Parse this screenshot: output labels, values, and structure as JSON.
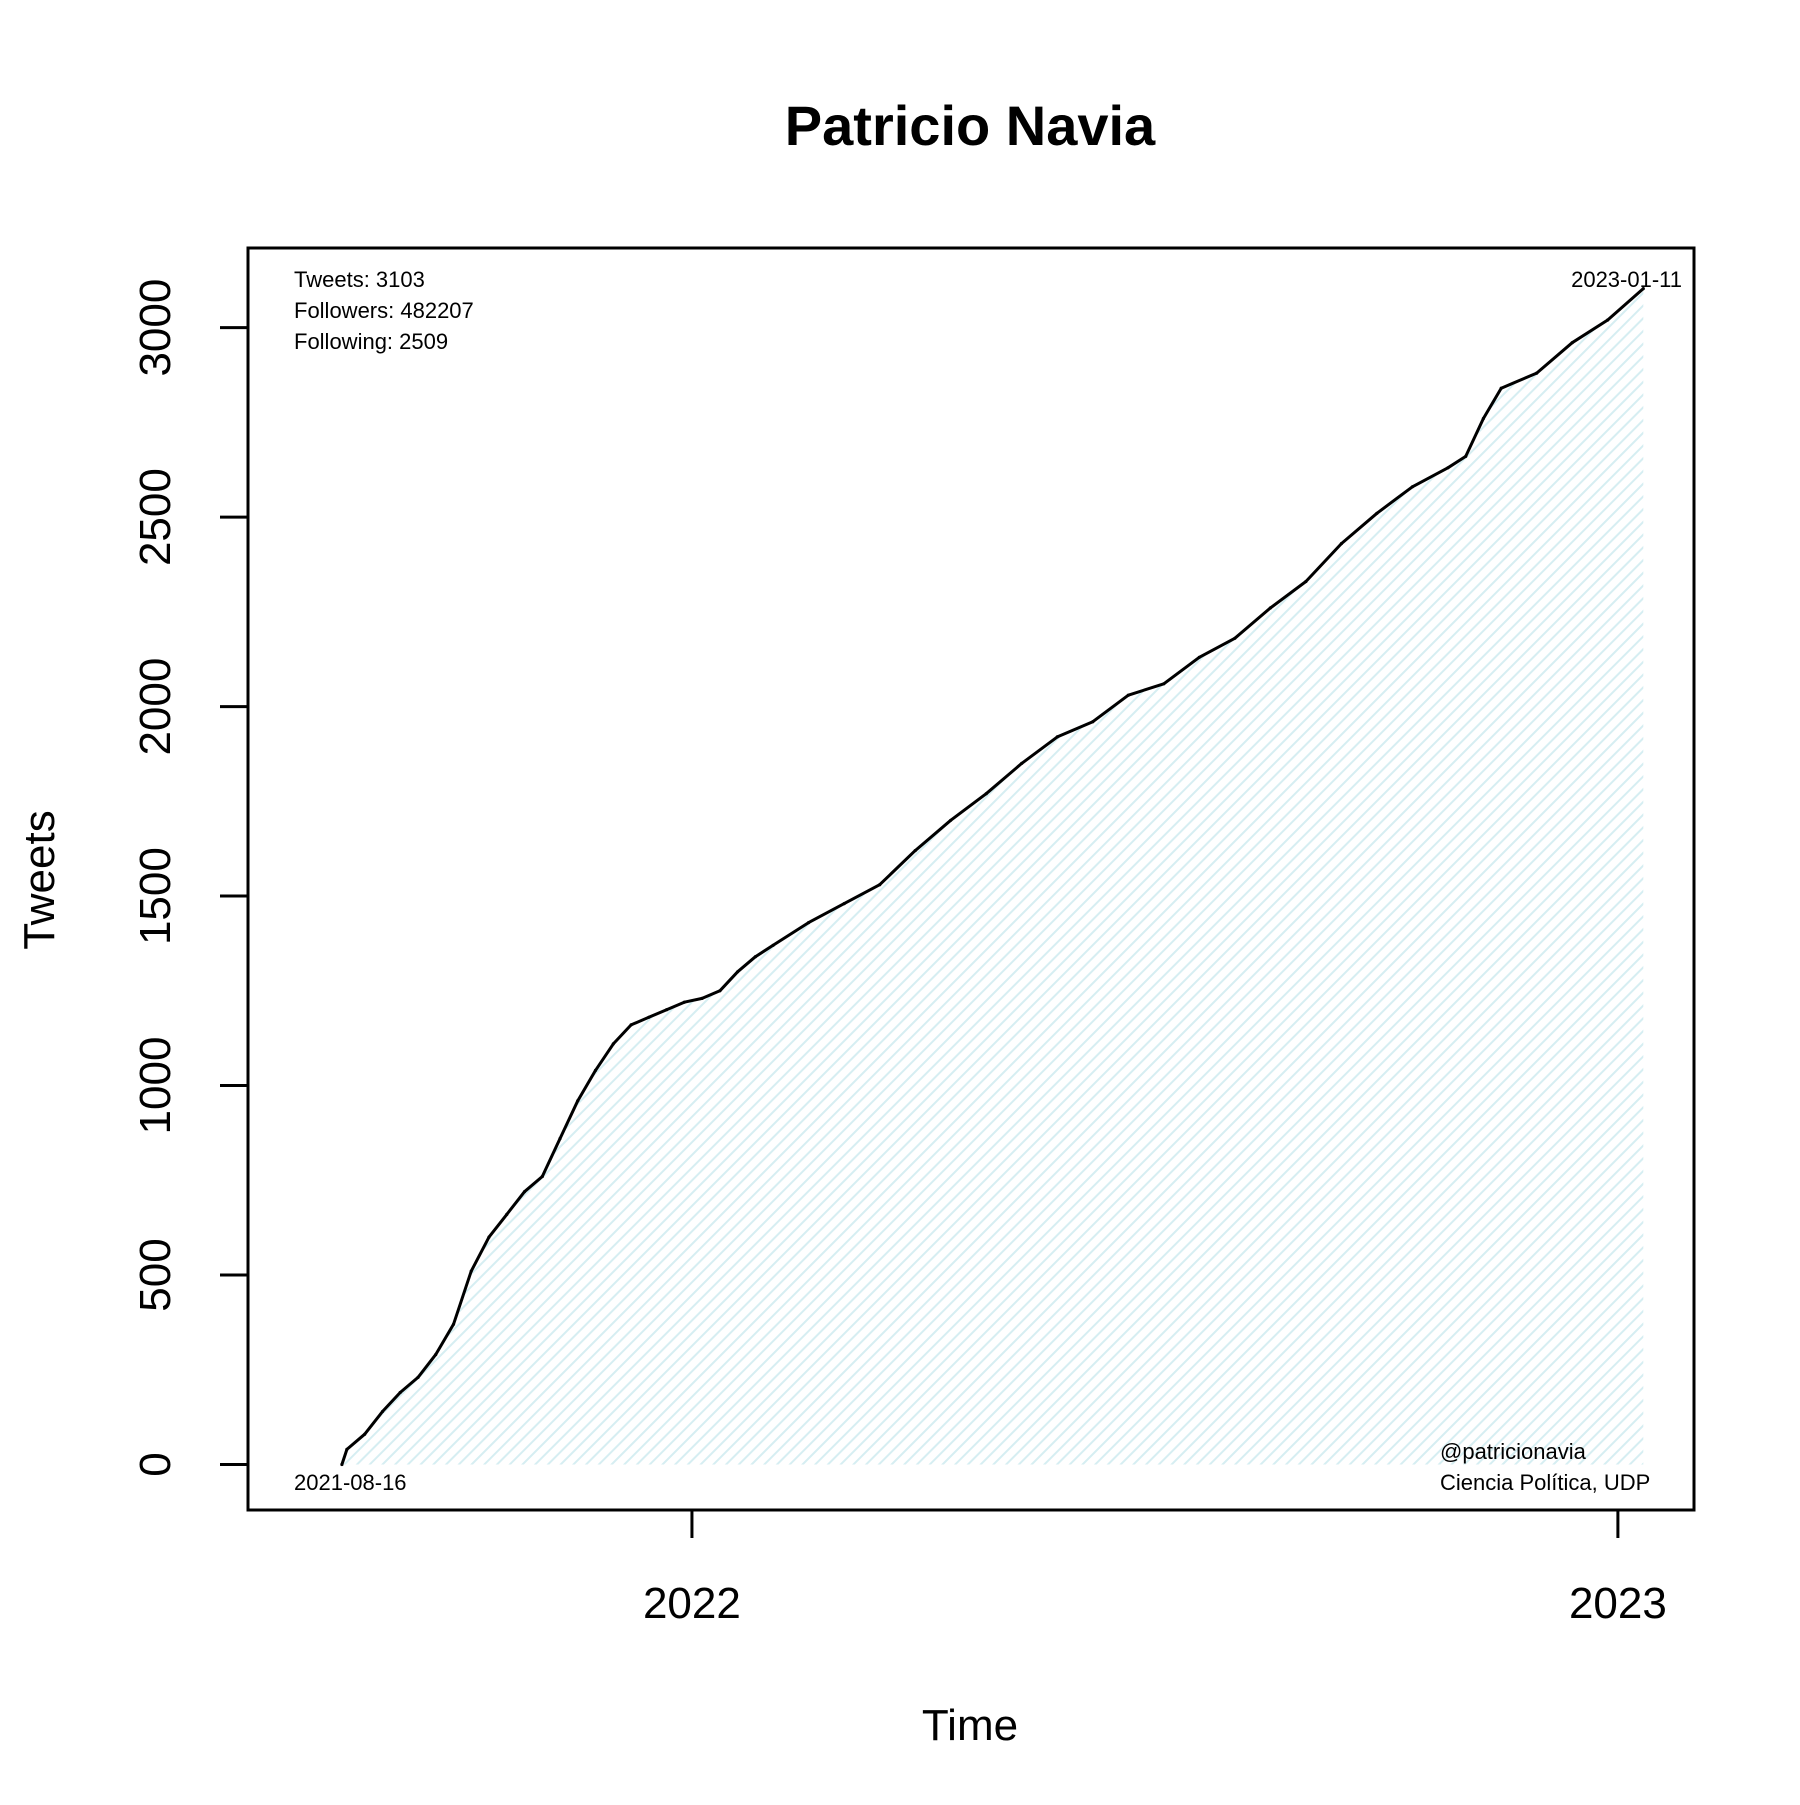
{
  "colors": {
    "line": "#000000",
    "fill_hatch": "#d6eef2",
    "background": "#ffffff",
    "frame": "#000000"
  },
  "chart_data": {
    "type": "area",
    "title": "Patricio Navia",
    "xlabel": "Time",
    "ylabel": "Tweets",
    "x_range": [
      "2021-07-10",
      "2023-01-31"
    ],
    "ylim": [
      -120,
      3210
    ],
    "y_ticks": [
      0,
      500,
      1000,
      1500,
      2000,
      2500,
      3000
    ],
    "y_tick_labels": [
      "0",
      "500",
      "1000",
      "1500",
      "2000",
      "2500",
      "3000"
    ],
    "x_ticks": [
      "2022-01-01",
      "2023-01-01"
    ],
    "x_tick_labels": [
      "2022",
      "2023"
    ],
    "grid": false,
    "legend": "none",
    "annotations": {
      "tweets": "Tweets: 3103",
      "followers": "Followers: 482207",
      "following": "Following: 2509",
      "start_date": "2021-08-16",
      "end_date": "2023-01-11",
      "handle": "@patricionavia",
      "affiliation": "Ciencia Política, UDP"
    },
    "series": [
      {
        "x": [
          "2021-08-16",
          "2021-08-18",
          "2021-08-25",
          "2021-09-01",
          "2021-09-08",
          "2021-09-15",
          "2021-09-22",
          "2021-09-29",
          "2021-10-06",
          "2021-10-13",
          "2021-10-20",
          "2021-10-27",
          "2021-11-03",
          "2021-11-10",
          "2021-11-17",
          "2021-11-24",
          "2021-12-01",
          "2021-12-08",
          "2021-12-15",
          "2021-12-22",
          "2021-12-29",
          "2022-01-05",
          "2022-01-12",
          "2022-01-19",
          "2022-01-26",
          "2022-02-02",
          "2022-02-16",
          "2022-03-02",
          "2022-03-16",
          "2022-03-30",
          "2022-04-13",
          "2022-04-27",
          "2022-05-11",
          "2022-05-25",
          "2022-06-08",
          "2022-06-22",
          "2022-07-06",
          "2022-07-20",
          "2022-08-03",
          "2022-08-17",
          "2022-08-31",
          "2022-09-14",
          "2022-09-28",
          "2022-10-12",
          "2022-10-26",
          "2022-11-02",
          "2022-11-09",
          "2022-11-16",
          "2022-11-30",
          "2022-12-14",
          "2022-12-28",
          "2023-01-11"
        ],
        "y": [
          0,
          40,
          80,
          140,
          190,
          230,
          290,
          370,
          510,
          600,
          660,
          720,
          760,
          860,
          960,
          1040,
          1110,
          1160,
          1180,
          1200,
          1220,
          1230,
          1250,
          1300,
          1340,
          1370,
          1430,
          1480,
          1530,
          1620,
          1700,
          1770,
          1850,
          1920,
          1960,
          2030,
          2060,
          2130,
          2180,
          2260,
          2330,
          2430,
          2510,
          2580,
          2630,
          2660,
          2760,
          2840,
          2880,
          2960,
          3020,
          3103
        ]
      }
    ]
  }
}
